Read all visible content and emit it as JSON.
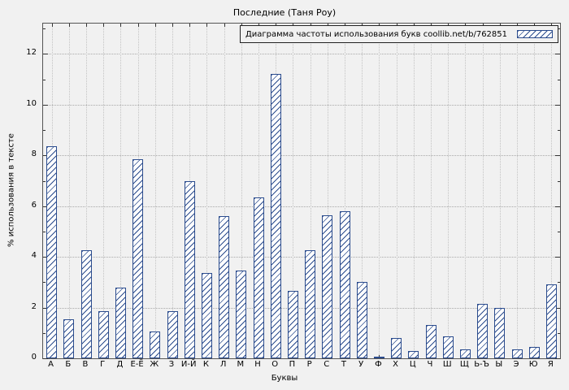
{
  "figure": {
    "title": "Последние (Таня Роу)"
  },
  "chart_data": {
    "type": "bar",
    "title": "Последние (Таня Роу)",
    "legend": "Диаграмма частоты использования букв coollib.net/b/762851",
    "xlabel": "Буквы",
    "ylabel": "% использования в тексте",
    "categories": [
      "А",
      "Б",
      "В",
      "Г",
      "Д",
      "Е-Ё",
      "Ж",
      "З",
      "И-Й",
      "К",
      "Л",
      "М",
      "Н",
      "О",
      "П",
      "Р",
      "С",
      "Т",
      "У",
      "Ф",
      "Х",
      "Ц",
      "Ч",
      "Ш",
      "Щ",
      "Ь-Ъ",
      "Ы",
      "Э",
      "Ю",
      "Я"
    ],
    "values": [
      8.35,
      1.55,
      4.25,
      1.85,
      2.8,
      7.85,
      1.05,
      1.85,
      7.0,
      3.35,
      5.6,
      3.45,
      6.35,
      11.2,
      2.65,
      4.25,
      5.65,
      5.8,
      3.0,
      0.05,
      0.8,
      0.3,
      1.3,
      0.85,
      0.35,
      2.15,
      2.0,
      0.35,
      0.45,
      2.9
    ],
    "ylim": [
      0,
      13.2
    ],
    "yticks": [
      0,
      2,
      4,
      6,
      8,
      10,
      12
    ],
    "grid": true,
    "legend_position": "top-right-inside",
    "bar_fill": "#ffffff",
    "hatch_color": "#2a4b8d",
    "border_color": "#2a4b8d",
    "background": "#f1f1f1"
  }
}
